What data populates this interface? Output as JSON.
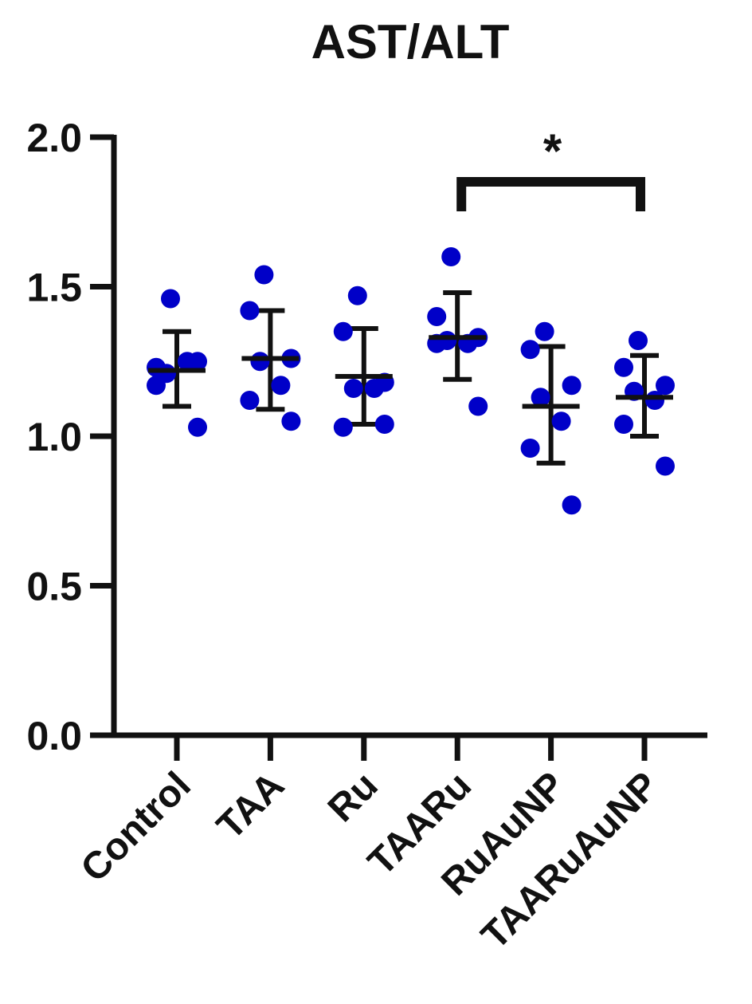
{
  "chart_data": {
    "type": "scatter",
    "title": "AST/ALT",
    "xlabel": "",
    "ylabel": "",
    "ylim": [
      0,
      2.0
    ],
    "yticks": [
      "0.0",
      "0.5",
      "1.0",
      "1.5",
      "2.0"
    ],
    "categories": [
      "Control",
      "TAA",
      "Ru",
      "TAARu",
      "RuAuNP",
      "TAARuAuNP"
    ],
    "point_color": "#0000c8",
    "axis_color": "#111111",
    "groups": [
      {
        "category": "Control",
        "points": [
          1.46,
          1.23,
          1.25,
          1.21,
          1.25,
          1.17,
          1.03
        ],
        "mean": 1.22,
        "sd_upper": 1.35,
        "sd_lower": 1.1
      },
      {
        "category": "TAA",
        "points": [
          1.54,
          1.42,
          1.26,
          1.25,
          1.17,
          1.12,
          1.05
        ],
        "mean": 1.26,
        "sd_upper": 1.42,
        "sd_lower": 1.09
      },
      {
        "category": "Ru",
        "points": [
          1.47,
          1.35,
          1.18,
          1.16,
          1.16,
          1.03,
          1.04
        ],
        "mean": 1.2,
        "sd_upper": 1.36,
        "sd_lower": 1.04
      },
      {
        "category": "TAARu",
        "points": [
          1.6,
          1.4,
          1.33,
          1.32,
          1.31,
          1.31,
          1.1
        ],
        "mean": 1.33,
        "sd_upper": 1.48,
        "sd_lower": 1.19
      },
      {
        "category": "RuAuNP",
        "points": [
          1.35,
          1.29,
          1.17,
          1.13,
          1.05,
          0.96,
          0.77
        ],
        "mean": 1.1,
        "sd_upper": 1.3,
        "sd_lower": 0.91
      },
      {
        "category": "TAARuAuNP",
        "points": [
          1.32,
          1.23,
          1.17,
          1.15,
          1.12,
          1.04,
          0.9
        ],
        "mean": 1.13,
        "sd_upper": 1.27,
        "sd_lower": 1.0
      }
    ],
    "significance": [
      {
        "from": "TAARu",
        "to": "TAARuAuNP",
        "label": "*"
      }
    ]
  }
}
